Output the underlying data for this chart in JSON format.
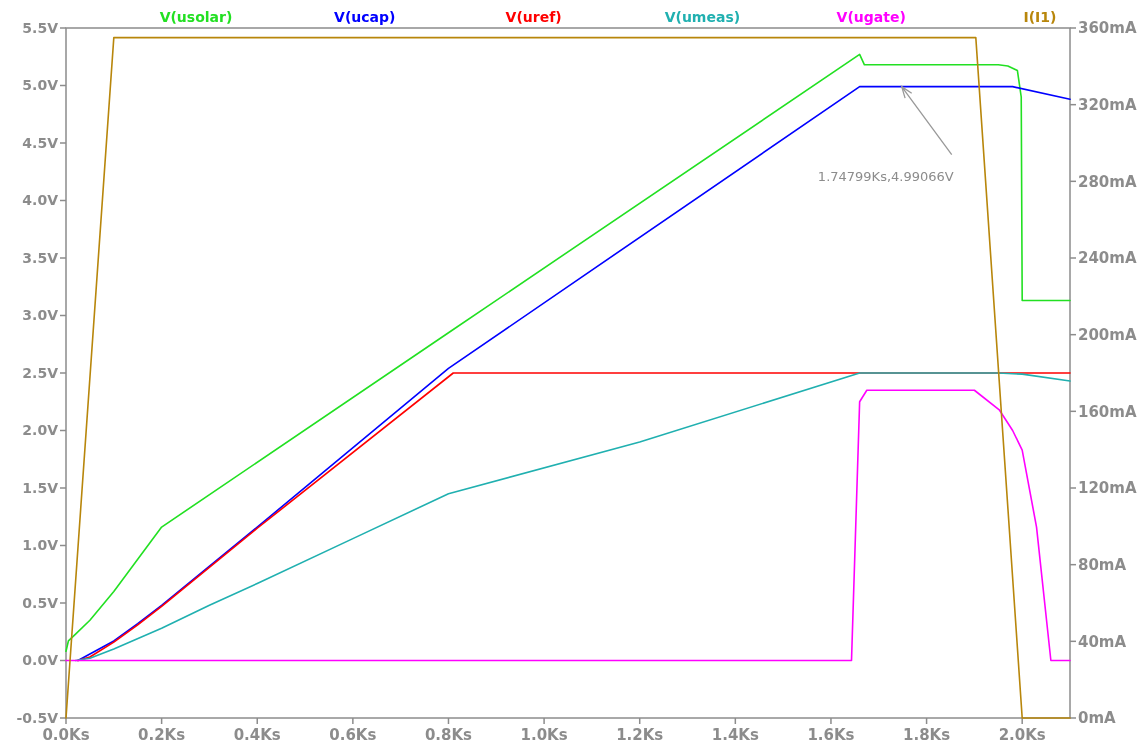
{
  "chart_data": {
    "type": "line",
    "legend": "top",
    "line_style": "solid",
    "xlim": [
      0,
      2.1
    ],
    "xticks": [
      {
        "value": 0,
        "label": "0.0Ks"
      },
      {
        "value": 0.2,
        "label": "0.2Ks"
      },
      {
        "value": 0.4,
        "label": "0.4Ks"
      },
      {
        "value": 0.6,
        "label": "0.6Ks"
      },
      {
        "value": 0.8,
        "label": "0.8Ks"
      },
      {
        "value": 1.0,
        "label": "1.0Ks"
      },
      {
        "value": 1.2,
        "label": "1.2Ks"
      },
      {
        "value": 1.4,
        "label": "1.4Ks"
      },
      {
        "value": 1.6,
        "label": "1.6Ks"
      },
      {
        "value": 1.8,
        "label": "1.8Ks"
      },
      {
        "value": 2.0,
        "label": "2.0Ks"
      }
    ],
    "ylim": [
      -0.5,
      5.5
    ],
    "yticks": [
      {
        "value": -0.5,
        "label": "-0.5V"
      },
      {
        "value": 0,
        "label": "0.0V"
      },
      {
        "value": 0.5,
        "label": "0.5V"
      },
      {
        "value": 1.0,
        "label": "1.0V"
      },
      {
        "value": 1.5,
        "label": "1.5V"
      },
      {
        "value": 2.0,
        "label": "2.0V"
      },
      {
        "value": 2.5,
        "label": "2.5V"
      },
      {
        "value": 3.0,
        "label": "3.0V"
      },
      {
        "value": 3.5,
        "label": "3.5V"
      },
      {
        "value": 4.0,
        "label": "4.0V"
      },
      {
        "value": 4.5,
        "label": "4.5V"
      },
      {
        "value": 5.0,
        "label": "5.0V"
      },
      {
        "value": 5.5,
        "label": "5.5V"
      }
    ],
    "y2lim": [
      0,
      360
    ],
    "y2ticks": [
      {
        "value": 0,
        "label": "0mA"
      },
      {
        "value": 40,
        "label": "40mA"
      },
      {
        "value": 80,
        "label": "80mA"
      },
      {
        "value": 120,
        "label": "120mA"
      },
      {
        "value": 160,
        "label": "160mA"
      },
      {
        "value": 200,
        "label": "200mA"
      },
      {
        "value": 240,
        "label": "240mA"
      },
      {
        "value": 280,
        "label": "280mA"
      },
      {
        "value": 320,
        "label": "320mA"
      },
      {
        "value": 360,
        "label": "360mA"
      }
    ],
    "annotations": [
      {
        "text": "1.74799Ks,4.99066V",
        "x": 1.748,
        "y": 4.99
      }
    ],
    "series": [
      {
        "name": "V(usolar)",
        "color": "#22e022",
        "x": [
          0,
          0.005,
          0.02,
          0.05,
          0.1,
          0.2,
          0.8,
          1.66,
          1.67,
          1.95,
          1.97,
          1.99,
          1.998,
          2.0,
          2.1
        ],
        "values": [
          0.08,
          0.17,
          0.23,
          0.35,
          0.6,
          1.16,
          2.85,
          5.27,
          5.18,
          5.18,
          5.17,
          5.13,
          4.9,
          3.13,
          3.13
        ]
      },
      {
        "name": "V(ucap)",
        "color": "#0000ff",
        "x": [
          0.025,
          0.05,
          0.1,
          0.15,
          0.2,
          0.4,
          0.8,
          1.66,
          1.98,
          2.1
        ],
        "values": [
          0,
          null,
          0.17,
          0.32,
          0.48,
          1.16,
          2.54,
          4.99,
          4.99,
          4.88
        ]
      },
      {
        "name": "V(uref)",
        "color": "#ff0000",
        "x": [
          0.025,
          0.05,
          0.1,
          0.15,
          0.2,
          0.4,
          0.81,
          2.1
        ],
        "values": [
          0,
          0.03,
          0.16,
          0.31,
          0.47,
          1.15,
          2.5,
          2.5
        ]
      },
      {
        "name": "V(umeas)",
        "color": "#20b0b0",
        "x": [
          0.02,
          0.05,
          0.1,
          0.2,
          0.3,
          0.4,
          0.6,
          0.8,
          1.2,
          1.66,
          1.95,
          2.0,
          2.1
        ],
        "values": [
          0,
          0.02,
          0.1,
          0.28,
          0.48,
          0.67,
          1.06,
          1.45,
          1.9,
          2.5,
          2.5,
          2.49,
          2.43
        ]
      },
      {
        "name": "V(ugate)",
        "color": "#ff00ff",
        "x": [
          0,
          1.643,
          1.66,
          1.675,
          1.9,
          1.952,
          1.98,
          2.0,
          2.03,
          2.06,
          2.1
        ],
        "values": [
          0,
          0,
          2.25,
          2.35,
          2.35,
          2.18,
          2.0,
          1.83,
          1.16,
          0,
          0
        ]
      },
      {
        "name": "I(I1)",
        "color": "#b8860b",
        "axis": "y2",
        "x": [
          0,
          0.1,
          1.903,
          2.0,
          2.1
        ],
        "values": [
          0,
          355,
          355,
          0,
          0
        ]
      }
    ]
  }
}
